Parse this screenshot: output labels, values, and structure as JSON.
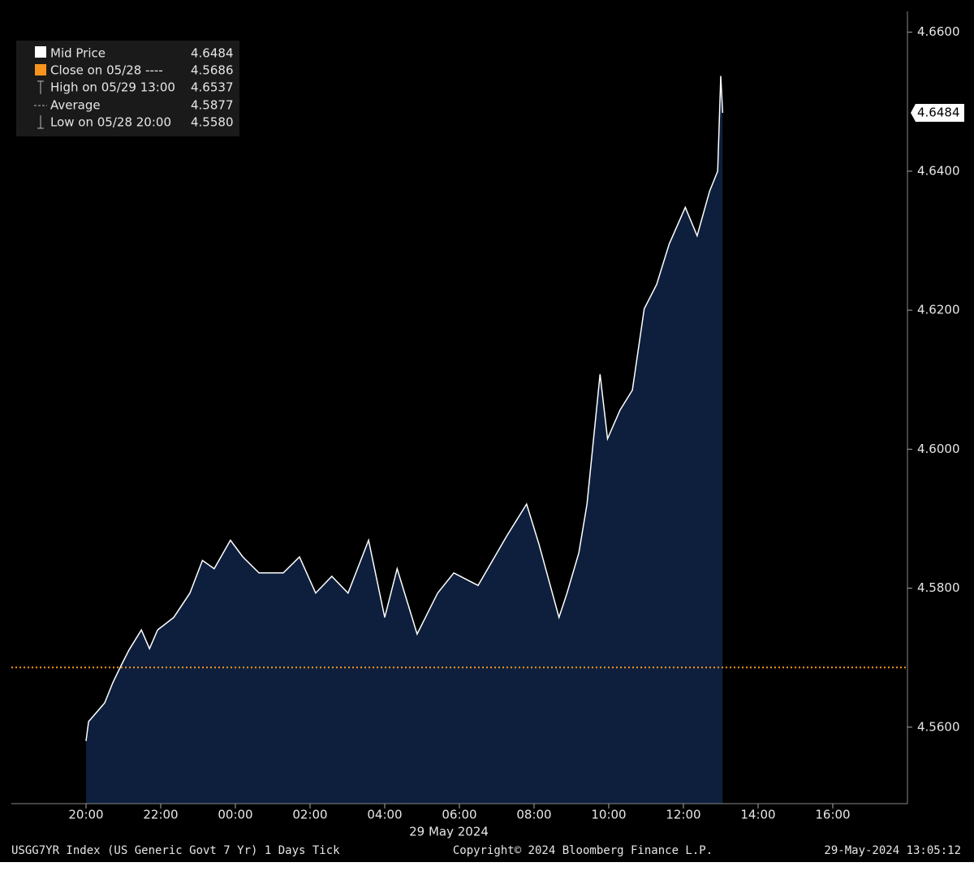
{
  "chart_data": {
    "type": "area",
    "x": [
      "2024-05-28 20:00",
      "2024-05-28 20:04",
      "2024-05-28 20:30",
      "2024-05-28 20:43",
      "2024-05-28 20:56",
      "2024-05-28 21:09",
      "2024-05-28 21:29",
      "2024-05-28 21:42",
      "2024-05-28 21:55",
      "2024-05-28 22:21",
      "2024-05-28 22:47",
      "2024-05-28 23:07",
      "2024-05-28 23:26",
      "2024-05-28 23:52",
      "2024-05-29 00:12",
      "2024-05-29 00:38",
      "2024-05-29 01:17",
      "2024-05-29 01:43",
      "2024-05-29 02:09",
      "2024-05-29 02:35",
      "2024-05-29 03:01",
      "2024-05-29 03:34",
      "2024-05-29 04:00",
      "2024-05-29 04:20",
      "2024-05-29 04:52",
      "2024-05-29 05:25",
      "2024-05-29 05:51",
      "2024-05-29 06:30",
      "2024-05-29 07:16",
      "2024-05-29 07:48",
      "2024-05-29 08:08",
      "2024-05-29 08:40",
      "2024-05-29 08:53",
      "2024-05-29 09:12",
      "2024-05-29 09:25",
      "2024-05-29 09:46",
      "2024-05-29 09:58",
      "2024-05-29 10:18",
      "2024-05-29 10:38",
      "2024-05-29 10:57",
      "2024-05-29 11:17",
      "2024-05-29 11:37",
      "2024-05-29 12:03",
      "2024-05-29 12:22",
      "2024-05-29 12:42",
      "2024-05-29 12:55",
      "2024-05-29 13:00",
      "2024-05-29 13:03"
    ],
    "series": [
      {
        "name": "Mid Price",
        "color": "#ffffff",
        "fill": "#0d1f3c",
        "values": [
          4.558,
          4.5608,
          4.5635,
          4.5664,
          4.5688,
          4.5711,
          4.574,
          4.5713,
          4.574,
          4.5758,
          4.5793,
          4.584,
          4.5828,
          4.5869,
          4.5845,
          4.5822,
          4.5822,
          4.5845,
          4.5793,
          4.5817,
          4.5793,
          4.5869,
          4.5758,
          4.5828,
          4.5734,
          4.5793,
          4.5822,
          4.5804,
          4.5875,
          4.5921,
          4.5863,
          4.5758,
          4.5793,
          4.5851,
          4.5921,
          4.6108,
          4.6015,
          4.6056,
          4.6085,
          4.6202,
          4.6237,
          4.6295,
          4.6348,
          4.6307,
          4.6371,
          4.64,
          4.6537,
          4.6484
        ]
      }
    ],
    "reference_line": {
      "value": 4.5686,
      "color": "#f7941d"
    },
    "last_price": "4.6484",
    "xlim": [
      "2024-05-28 18:00",
      "2024-05-29 18:00"
    ],
    "xticks": [
      {
        "value": "2024-05-28 20:00",
        "label": "20:00"
      },
      {
        "value": "2024-05-28 22:00",
        "label": "22:00"
      },
      {
        "value": "2024-05-29 00:00",
        "label": "00:00"
      },
      {
        "value": "2024-05-29 02:00",
        "label": "02:00"
      },
      {
        "value": "2024-05-29 04:00",
        "label": "04:00"
      },
      {
        "value": "2024-05-29 06:00",
        "label": "06:00"
      },
      {
        "value": "2024-05-29 08:00",
        "label": "08:00"
      },
      {
        "value": "2024-05-29 10:00",
        "label": "10:00"
      },
      {
        "value": "2024-05-29 12:00",
        "label": "12:00"
      },
      {
        "value": "2024-05-29 14:00",
        "label": "14:00"
      },
      {
        "value": "2024-05-29 16:00",
        "label": "16:00"
      }
    ],
    "date_label": "29 May 2024",
    "ylim": [
      4.549,
      4.663
    ],
    "yticks": [
      {
        "value": 4.56,
        "label": "4.5600"
      },
      {
        "value": 4.58,
        "label": "4.5800"
      },
      {
        "value": 4.6,
        "label": "4.6000"
      },
      {
        "value": 4.62,
        "label": "4.6200"
      },
      {
        "value": 4.64,
        "label": "4.6400"
      },
      {
        "value": 4.66,
        "label": "4.6600"
      }
    ],
    "legend": [
      {
        "name": "Mid Price",
        "value": "4.6484"
      },
      {
        "name": "Close on 05/28 ----",
        "value": "4.5686"
      },
      {
        "name": "High on 05/29 13:00",
        "value": "4.6537"
      },
      {
        "name": "Average",
        "value": "4.5877"
      },
      {
        "name": "Low on 05/28 20:00",
        "value": "4.5580"
      }
    ],
    "footer": {
      "left": "USGG7YR Index (US Generic Govt 7 Yr) 1 Days  Tick",
      "center": "Copyright© 2024 Bloomberg Finance L.P.",
      "right": "29-May-2024 13:05:12"
    }
  }
}
